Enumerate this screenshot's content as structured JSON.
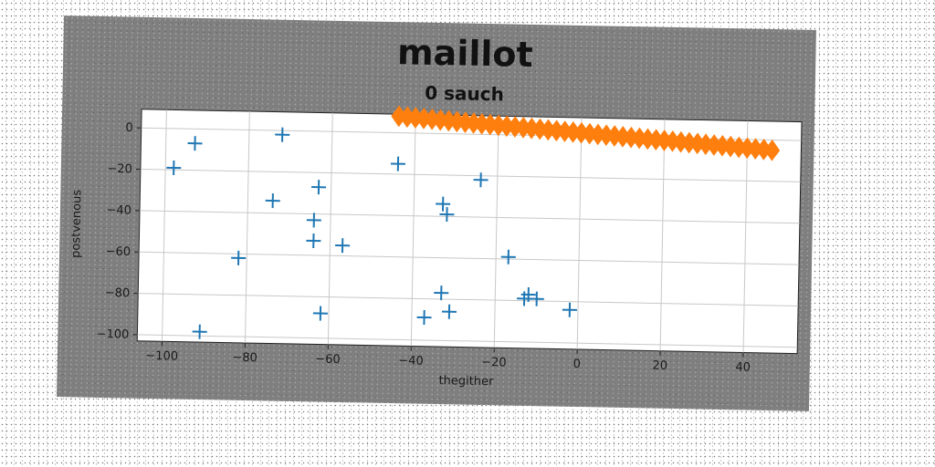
{
  "chart_data": {
    "type": "scatter",
    "title": "maillot",
    "subtitle": "0 sauch",
    "xlabel": "thegither",
    "ylabel": "postvenous",
    "xlim": [
      -106,
      53
    ],
    "ylim": [
      -103,
      9
    ],
    "xticks": [
      -100,
      -80,
      -60,
      -40,
      -20,
      0,
      20,
      40
    ],
    "yticks": [
      0,
      -20,
      -40,
      -60,
      -80,
      -100
    ],
    "grid": true,
    "series": [
      {
        "marker": "plus",
        "color": "#1f77b4",
        "points": [
          [
            -98,
            -19
          ],
          [
            -93,
            -7
          ],
          [
            -72,
            -2
          ],
          [
            -91,
            -98
          ],
          [
            -82,
            -62
          ],
          [
            -74,
            -34
          ],
          [
            -63,
            -27
          ],
          [
            -64,
            -43
          ],
          [
            -64,
            -53
          ],
          [
            -57,
            -55
          ],
          [
            -62,
            -88
          ],
          [
            -44,
            -15
          ],
          [
            -33,
            -34
          ],
          [
            -32,
            -39
          ],
          [
            -33,
            -77
          ],
          [
            -31,
            -86
          ],
          [
            -37,
            -89
          ],
          [
            -24,
            -22
          ],
          [
            -17,
            -59
          ],
          [
            -13,
            -79
          ],
          [
            -12,
            -77
          ],
          [
            -10,
            -79
          ],
          [
            -2,
            -84
          ]
        ]
      },
      {
        "marker": "diamond",
        "color": "#ff7f0e",
        "x_start": -44,
        "x_end": 46,
        "x_step": 2,
        "y_start": 8,
        "y_end": -5
      }
    ]
  }
}
